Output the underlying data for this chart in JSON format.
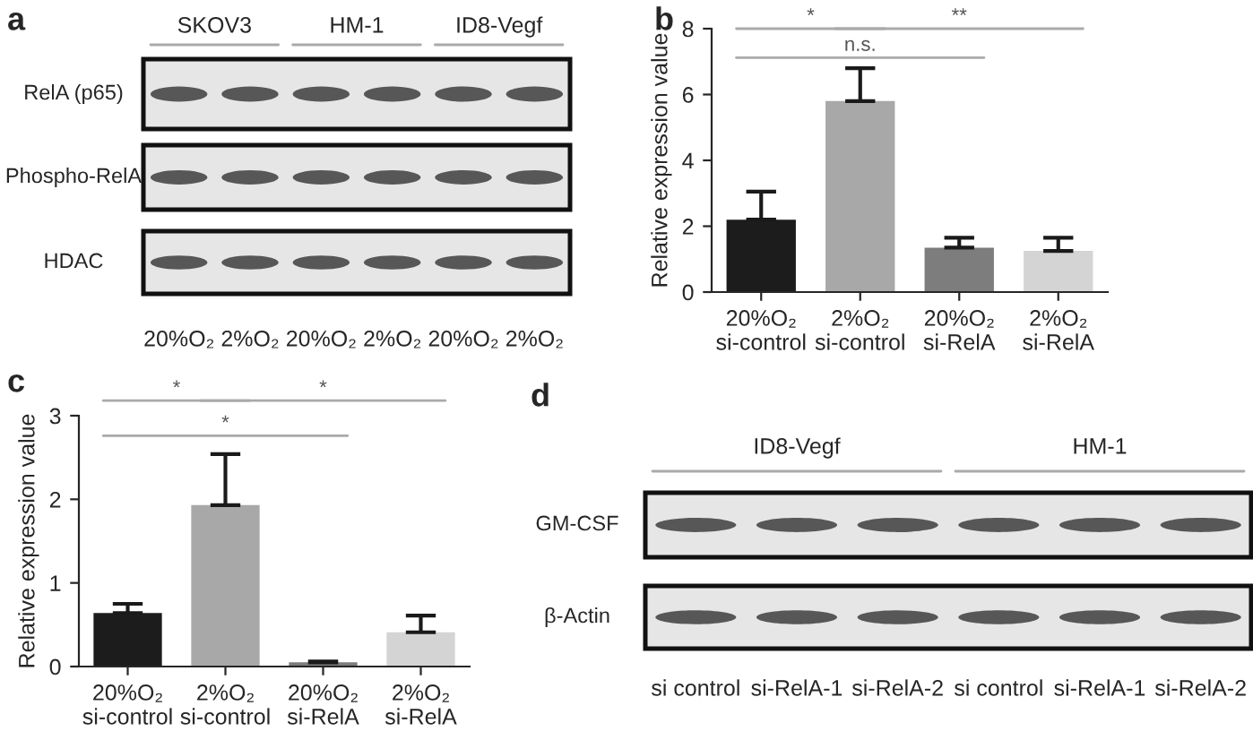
{
  "chart_data": [
    {
      "type": "other",
      "title": "a",
      "categories": [
        "20%O₂",
        "2%O₂",
        "20%O₂",
        "2%O₂",
        "20%O₂",
        "2%O₂"
      ],
      "annotations": [
        "SKOV3",
        "HM-1",
        "ID8-Vegf",
        "RelA (p65)",
        "Phospho-RelA",
        "HDAC"
      ]
    },
    {
      "type": "bar",
      "title": "b",
      "ylabel": "Relative expression value",
      "categories": [
        "20%O₂\nsi-control",
        "2%O₂\nsi-control",
        "20%O₂\nsi-RelA",
        "2%O₂\nsi-RelA"
      ],
      "values": [
        2.2,
        5.8,
        1.35,
        1.25
      ],
      "errors": [
        [
          2.2,
          3.05
        ],
        [
          5.8,
          6.8
        ],
        [
          1.35,
          1.65
        ],
        [
          1.25,
          1.65
        ]
      ],
      "colors": [
        "#1c1c1c",
        "#a8a8a8",
        "#7d7d7d",
        "#d4d4d4"
      ],
      "ylim": [
        0,
        8
      ],
      "yticks": [
        0,
        2,
        4,
        6,
        8
      ],
      "annotations": [
        "*",
        "n.s.",
        "**"
      ]
    },
    {
      "type": "bar",
      "title": "c",
      "ylabel": "Relative expression value",
      "categories": [
        "20%O₂\nsi-control",
        "2%O₂\nsi-control",
        "20%O₂\nsi-RelA",
        "2%O₂\nsi-RelA"
      ],
      "values": [
        0.64,
        1.93,
        0.05,
        0.41
      ],
      "errors": [
        [
          0.64,
          0.75
        ],
        [
          1.93,
          2.54
        ],
        [
          0.05,
          0.06
        ],
        [
          0.41,
          0.61
        ]
      ],
      "colors": [
        "#1c1c1c",
        "#a8a8a8",
        "#7d7d7d",
        "#d4d4d4"
      ],
      "ylim": [
        0,
        3
      ],
      "yticks": [
        0,
        1,
        2,
        3
      ],
      "annotations": [
        "*",
        "*",
        "*"
      ]
    },
    {
      "type": "other",
      "title": "d",
      "categories": [
        "si control",
        "si-RelA-1",
        "si-RelA-2",
        "si control",
        "si-RelA-1",
        "si-RelA-2"
      ],
      "annotations": [
        "ID8-Vegf",
        "HM-1",
        "GM-CSF",
        "β-Actin"
      ]
    }
  ]
}
